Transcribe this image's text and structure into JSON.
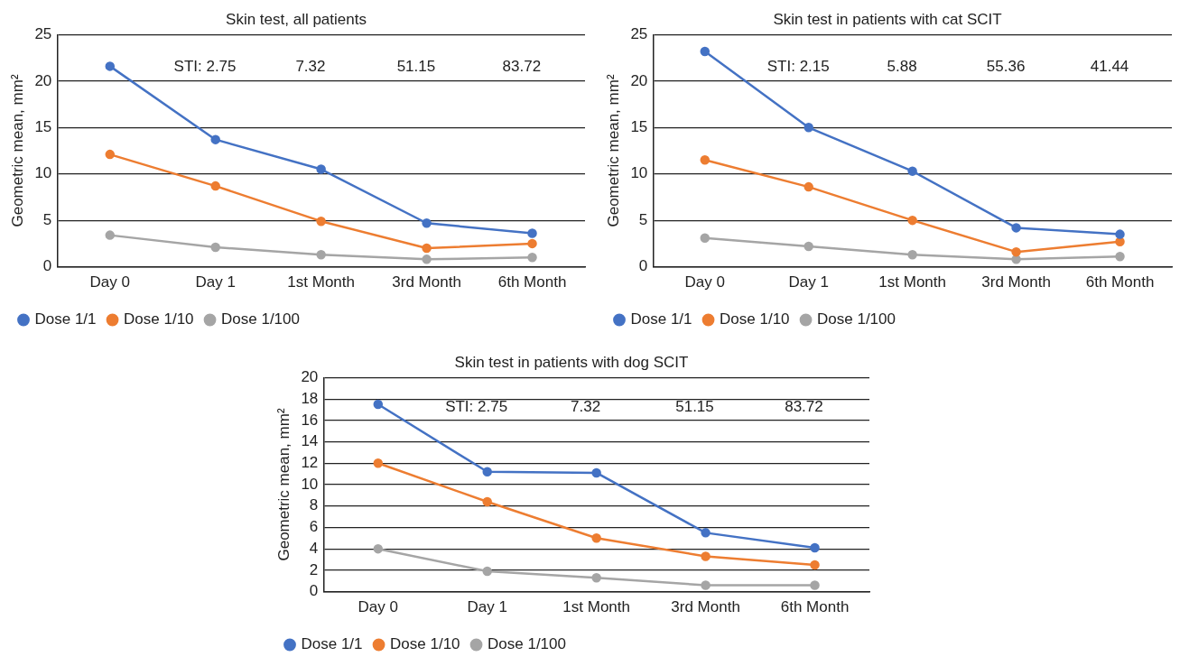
{
  "chart_data": [
    {
      "type": "line",
      "title": "Skin test, all patients",
      "ylabel": "Geometric mean, mm²",
      "categories": [
        "Day 0",
        "Day 1",
        "1st Month",
        "3rd Month",
        "6th Month"
      ],
      "series": [
        {
          "name": "Dose 1/1",
          "color": "#4472c4",
          "values": [
            21.6,
            13.7,
            10.5,
            4.7,
            3.6
          ]
        },
        {
          "name": "Dose 1/10",
          "color": "#ed7d31",
          "values": [
            12.1,
            8.7,
            4.9,
            2.0,
            2.5
          ]
        },
        {
          "name": "Dose 1/100",
          "color": "#a5a5a5",
          "values": [
            3.4,
            2.1,
            1.3,
            0.8,
            1.0
          ]
        }
      ],
      "annotations": [
        "STI: 2.75",
        "7.32",
        "51.15",
        "83.72"
      ],
      "ylim": [
        0,
        25
      ],
      "yticks": [
        0,
        5,
        10,
        15,
        20,
        25
      ],
      "grid": "y",
      "legend": "bottom",
      "marker": "circle",
      "line_style": "solid"
    },
    {
      "type": "line",
      "title": "Skin test in patients with cat SCIT",
      "ylabel": "Geometric mean, mm²",
      "categories": [
        "Day 0",
        "Day 1",
        "1st Month",
        "3rd Month",
        "6th Month"
      ],
      "series": [
        {
          "name": "Dose 1/1",
          "color": "#4472c4",
          "values": [
            23.2,
            15.0,
            10.3,
            4.2,
            3.5
          ]
        },
        {
          "name": "Dose 1/10",
          "color": "#ed7d31",
          "values": [
            11.5,
            8.6,
            5.0,
            1.6,
            2.7
          ]
        },
        {
          "name": "Dose 1/100",
          "color": "#a5a5a5",
          "values": [
            3.1,
            2.2,
            1.3,
            0.8,
            1.1
          ]
        }
      ],
      "annotations": [
        "STI: 2.15",
        "5.88",
        "55.36",
        "41.44"
      ],
      "ylim": [
        0,
        25
      ],
      "yticks": [
        0,
        5,
        10,
        15,
        20,
        25
      ],
      "grid": "y",
      "legend": "bottom",
      "marker": "circle",
      "line_style": "solid"
    },
    {
      "type": "line",
      "title": "Skin test in patients with dog SCIT",
      "ylabel": "Geometric mean, mm²",
      "categories": [
        "Day 0",
        "Day 1",
        "1st Month",
        "3rd Month",
        "6th Month"
      ],
      "series": [
        {
          "name": "Dose 1/1",
          "color": "#4472c4",
          "values": [
            17.5,
            11.2,
            11.1,
            5.5,
            4.1
          ]
        },
        {
          "name": "Dose 1/10",
          "color": "#ed7d31",
          "values": [
            12.0,
            8.4,
            5.0,
            3.3,
            2.5
          ]
        },
        {
          "name": "Dose 1/100",
          "color": "#a5a5a5",
          "values": [
            4.0,
            1.9,
            1.3,
            0.6,
            0.6
          ]
        }
      ],
      "annotations": [
        "STI: 2.75",
        "7.32",
        "51.15",
        "83.72"
      ],
      "ylim": [
        0,
        20
      ],
      "yticks": [
        0,
        2,
        4,
        6,
        8,
        10,
        12,
        14,
        16,
        18,
        20
      ],
      "grid": "y",
      "legend": "bottom",
      "marker": "circle",
      "line_style": "solid"
    }
  ]
}
